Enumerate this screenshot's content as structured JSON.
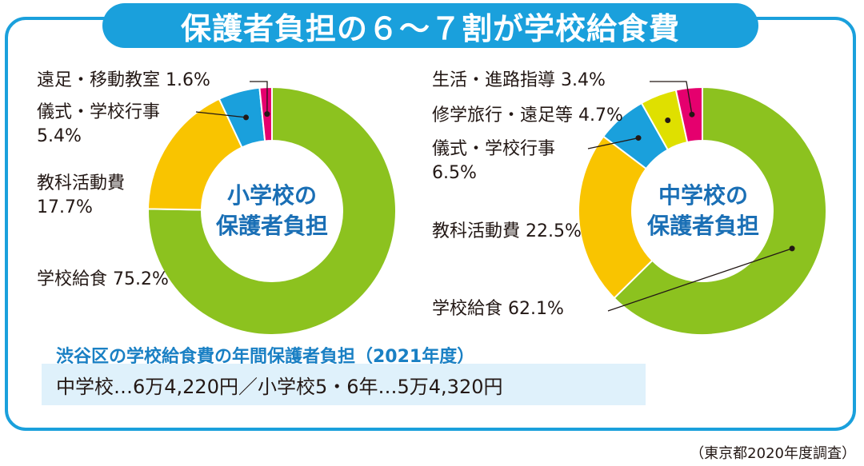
{
  "title": "保護者負担の６～７割が学校給食費",
  "chart_data": [
    {
      "type": "pie",
      "variant": "donut",
      "center_label": [
        "小学校の",
        "保護者負担"
      ],
      "slices": [
        {
          "label": "学校給食",
          "value": 75.2,
          "display": "75.2%",
          "color": "#8cc21f"
        },
        {
          "label": "教科活動費",
          "value": 17.7,
          "display": "17.7%",
          "color": "#f9c400"
        },
        {
          "label": "儀式・学校行事",
          "value": 5.4,
          "display": "5.4%",
          "color": "#1aa0dc"
        },
        {
          "label": "遠足・移動教室",
          "value": 1.6,
          "display": "1.6%",
          "color": "#e5006e"
        }
      ]
    },
    {
      "type": "pie",
      "variant": "donut",
      "center_label": [
        "中学校の",
        "保護者負担"
      ],
      "slices": [
        {
          "label": "学校給食",
          "value": 62.1,
          "display": "62.1%",
          "color": "#8cc21f"
        },
        {
          "label": "教科活動費",
          "value": 22.5,
          "display": "22.5%",
          "color": "#f9c400"
        },
        {
          "label": "儀式・学校行事",
          "value": 6.5,
          "display": "6.5%",
          "color": "#1aa0dc"
        },
        {
          "label": "修学旅行・遠足等",
          "value": 4.7,
          "display": "4.7%",
          "color": "#dfe000"
        },
        {
          "label": "生活・進路指導",
          "value": 3.4,
          "display": "3.4%",
          "color": "#e5006e"
        }
      ]
    }
  ],
  "fees": {
    "subtitle": "渋谷区の学校給食費の年間保護者負担（2021年度）",
    "text": "中学校…6万4,220円／小学校5・6年…5万4,320円"
  },
  "source": "（東京都2020年度調査）"
}
